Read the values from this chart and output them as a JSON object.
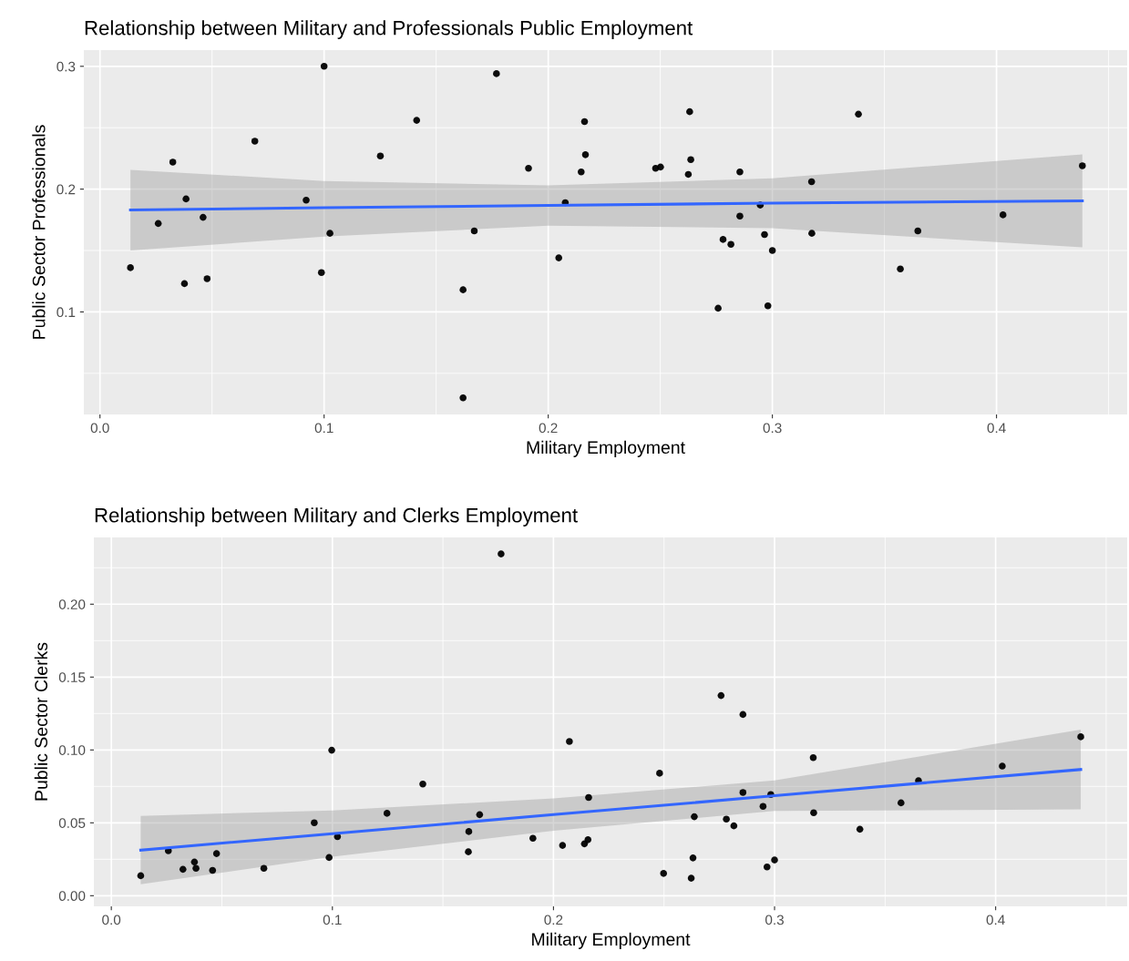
{
  "chart_data": [
    {
      "type": "scatter",
      "title": "Relationship between Military and Professionals Public Employment",
      "xlabel": "Military Employment",
      "ylabel": "Public Sector Professionals",
      "xlim": [
        -0.0072,
        0.4583
      ],
      "ylim": [
        0.0165,
        0.3132
      ],
      "xticks": [
        {
          "value": 0,
          "label": "0.0"
        },
        0.1,
        0.2,
        0.3,
        0.4
      ],
      "yticks": [
        0.1,
        0.2,
        0.3
      ],
      "grid": true,
      "series": [
        {
          "marker": "circle",
          "color": "#000000",
          "x": [
            0.0136,
            0.026,
            0.0325,
            0.0377,
            0.0384,
            0.046,
            0.0478,
            0.0691,
            0.092,
            0.0988,
            0.1,
            0.1026,
            0.1251,
            0.1413,
            0.162,
            0.162,
            0.167,
            0.1769,
            0.1912,
            0.2047,
            0.2076,
            0.2147,
            0.2162,
            0.2166,
            0.2479,
            0.2501,
            0.2631,
            0.2636,
            0.2625,
            0.2855,
            0.2855,
            0.278,
            0.2815,
            0.2946,
            0.2965,
            0.3,
            0.298,
            0.2758,
            0.3175,
            0.3176,
            0.3384,
            0.3571,
            0.3649,
            0.4029,
            0.4383
          ],
          "values": [
            0.136,
            0.172,
            0.222,
            0.123,
            0.192,
            0.177,
            0.127,
            0.239,
            0.191,
            0.132,
            0.3,
            0.164,
            0.227,
            0.256,
            0.118,
            0.03,
            0.166,
            0.294,
            0.217,
            0.144,
            0.189,
            0.214,
            0.255,
            0.228,
            0.217,
            0.218,
            0.263,
            0.224,
            0.212,
            0.214,
            0.178,
            0.159,
            0.155,
            0.187,
            0.163,
            0.15,
            0.105,
            0.103,
            0.206,
            0.164,
            0.261,
            0.135,
            0.166,
            0.179,
            0.219
          ]
        },
        {
          "type": "line",
          "color": "#3366ff",
          "x": [
            0.0136,
            0.1,
            0.2,
            0.3,
            0.4383
          ],
          "values": [
            0.183,
            0.1849,
            0.1867,
            0.1886,
            0.1904
          ],
          "lower": [
            0.15,
            0.1613,
            0.1703,
            0.1681,
            0.1527
          ],
          "upper": [
            0.2157,
            0.2066,
            0.203,
            0.2088,
            0.2283
          ]
        }
      ]
    },
    {
      "type": "scatter",
      "title": "Relationship between Military and Clerks Employment",
      "xlabel": "Military Employment",
      "ylabel": "Public Sector Clerks",
      "xlim": [
        -0.0079,
        0.4595
      ],
      "ylim": [
        -0.0073,
        0.2458
      ],
      "xticks": [
        {
          "value": 0,
          "label": "0.0"
        },
        0.1,
        0.2,
        0.3,
        0.4
      ],
      "yticks": [
        {
          "value": 0,
          "label": "0.00"
        },
        {
          "value": 0.05,
          "label": "0.05"
        },
        {
          "value": 0.1,
          "label": "0.10"
        },
        {
          "value": 0.15,
          "label": "0.15"
        },
        {
          "value": 0.2,
          "label": "0.20"
        }
      ],
      "grid": true,
      "series": [
        {
          "marker": "circle",
          "color": "#000000",
          "x": [
            0.0133,
            0.0258,
            0.0324,
            0.0376,
            0.0383,
            0.0458,
            0.0476,
            0.069,
            0.0918,
            0.0985,
            0.0997,
            0.1023,
            0.1247,
            0.1409,
            0.1615,
            0.1617,
            0.1666,
            0.1763,
            0.1907,
            0.2041,
            0.2072,
            0.214,
            0.2156,
            0.2159,
            0.248,
            0.2498,
            0.2623,
            0.2631,
            0.2637,
            0.2758,
            0.2857,
            0.2857,
            0.2782,
            0.2816,
            0.2948,
            0.2983,
            0.2966,
            0.3,
            0.3175,
            0.3177,
            0.3386,
            0.3572,
            0.3651,
            0.403,
            0.4385
          ],
          "values": [
            0.0137,
            0.0308,
            0.0181,
            0.0231,
            0.0188,
            0.0174,
            0.0289,
            0.0188,
            0.05,
            0.0262,
            0.0998,
            0.0405,
            0.0565,
            0.0766,
            0.0301,
            0.044,
            0.0556,
            0.2345,
            0.0394,
            0.0345,
            0.1058,
            0.0356,
            0.0384,
            0.0674,
            0.084,
            0.0153,
            0.012,
            0.0259,
            0.0542,
            0.1373,
            0.1243,
            0.0708,
            0.0525,
            0.0479,
            0.0613,
            0.0694,
            0.0197,
            0.0245,
            0.0947,
            0.0569,
            0.0456,
            0.0637,
            0.0789,
            0.0889,
            0.109
          ]
        },
        {
          "type": "line",
          "color": "#3366ff",
          "x": [
            0.0133,
            0.1,
            0.2,
            0.3,
            0.4385
          ],
          "values": [
            0.0313,
            0.0426,
            0.0556,
            0.0686,
            0.0866
          ],
          "lower": [
            0.0078,
            0.0267,
            0.0445,
            0.0581,
            0.0593
          ],
          "upper": [
            0.0548,
            0.0585,
            0.0667,
            0.0791,
            0.1139
          ]
        }
      ]
    }
  ]
}
